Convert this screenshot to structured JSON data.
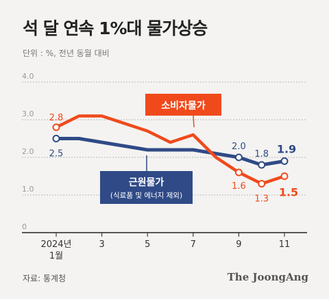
{
  "header": {
    "title": "석 달 연속 1%대 물가상승",
    "unit": "단위 : %, 전년 동월 대비"
  },
  "footer": {
    "source": "자료: 통계청",
    "brand": "The JoongAng"
  },
  "colors": {
    "cpi": "#f04a1c",
    "core": "#2f4a86",
    "grid": "#b8b8b8",
    "axis": "#222222"
  },
  "chart_data": {
    "type": "line",
    "x": [
      1,
      2,
      3,
      4,
      5,
      6,
      7,
      8,
      9,
      10,
      11
    ],
    "xlim": [
      1,
      11
    ],
    "ylim": [
      0,
      4
    ],
    "yticks": [
      "0",
      "1.0",
      "2.0",
      "3.0",
      "4.0"
    ],
    "xtick_positions": [
      1,
      3,
      5,
      7,
      9,
      11
    ],
    "xtick_labels": [
      [
        "2024년",
        "1월"
      ],
      [
        "3"
      ],
      [
        "5"
      ],
      [
        "7"
      ],
      [
        "9"
      ],
      [
        "11"
      ]
    ],
    "series": [
      {
        "name": "소비자물가",
        "color": "#f04a1c",
        "values": [
          2.8,
          3.1,
          3.1,
          2.9,
          2.7,
          2.4,
          2.6,
          2.0,
          1.6,
          1.3,
          1.5
        ],
        "point_labels": {
          "0": "2.8",
          "8": "1.6",
          "9": "1.3",
          "10": "1.5"
        }
      },
      {
        "name": "근원물가",
        "sublabel": "(식료품 및 에너지 제외)",
        "color": "#2f4a86",
        "values": [
          2.5,
          2.5,
          2.4,
          2.3,
          2.2,
          2.2,
          2.2,
          2.1,
          2.0,
          1.8,
          1.9
        ],
        "point_labels": {
          "0": "2.5",
          "8": "2.0",
          "9": "1.8",
          "10": "1.9"
        }
      }
    ]
  }
}
